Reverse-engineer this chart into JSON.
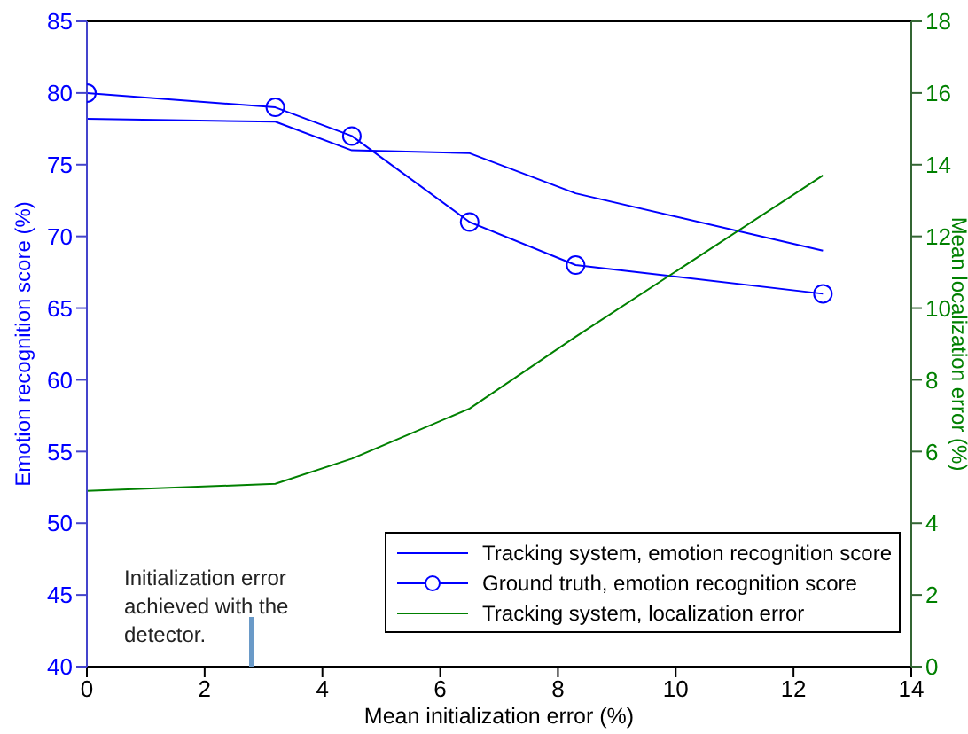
{
  "chart_data": {
    "type": "line",
    "xlabel": "Mean initialization error (%)",
    "ylabel": "Emotion recognition score (%)",
    "y2label": "Mean localization error (%)",
    "x": [
      0,
      3.2,
      4.5,
      6.5,
      8.3,
      12.5
    ],
    "series": [
      {
        "name": "Tracking system, emotion recognition score",
        "color": "#0000ff",
        "marker": "none",
        "values": [
          78.2,
          78,
          76,
          75.8,
          73,
          69
        ]
      },
      {
        "name": "Ground truth, emotion recognition score",
        "color": "#0000ff",
        "marker": "circle",
        "values": [
          80,
          79,
          77,
          71,
          68,
          66
        ]
      },
      {
        "name": "Tracking system, localization error",
        "color": "#008000",
        "marker": "none",
        "axis": "y2",
        "values": [
          4.9,
          5.1,
          5.8,
          7.2,
          9.2,
          13.7
        ]
      }
    ],
    "xlim": [
      0,
      14
    ],
    "xticks": [
      0,
      2,
      4,
      6,
      8,
      10,
      12,
      14
    ],
    "ylim": [
      40,
      85
    ],
    "yticks": [
      40,
      45,
      50,
      55,
      60,
      65,
      70,
      75,
      80,
      85
    ],
    "y2lim": [
      0,
      18
    ],
    "y2ticks": [
      0,
      2,
      4,
      6,
      8,
      10,
      12,
      14,
      16,
      18
    ],
    "ref_lines": [
      {
        "axis": "x",
        "value": 2.8,
        "label": "Initialization error achieved with the detector.",
        "color": "#6a9ac8"
      }
    ],
    "legend": "bottom right",
    "grid": false,
    "line_style": "solid"
  }
}
